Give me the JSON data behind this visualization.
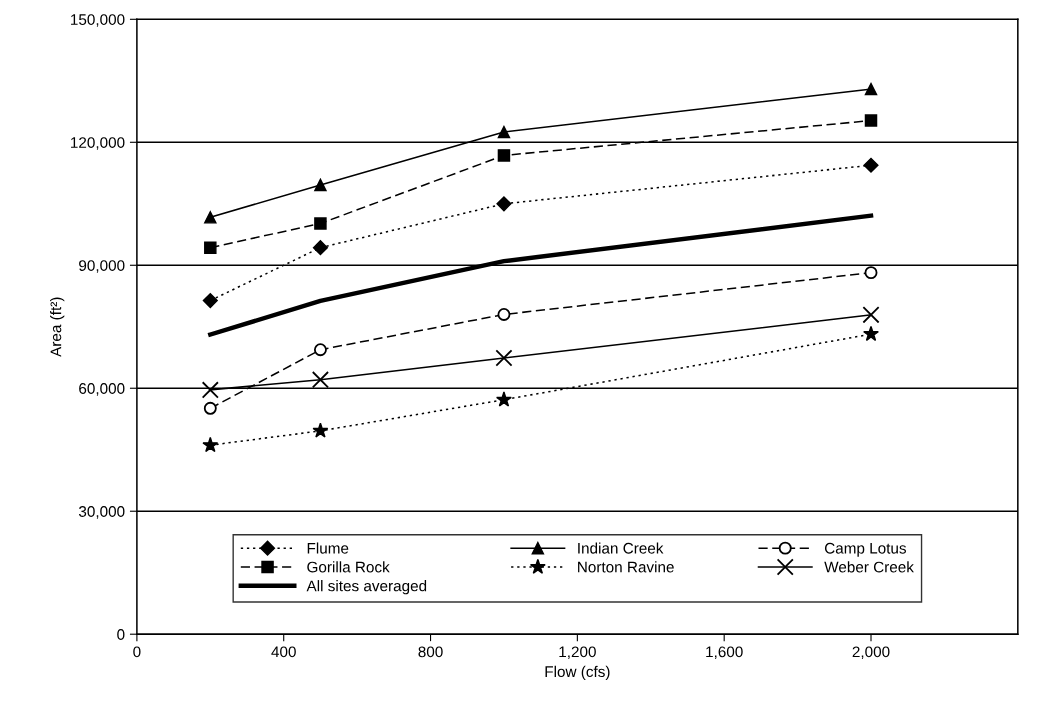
{
  "chart_data": {
    "type": "line",
    "xlabel": "Flow (cfs)",
    "ylabel": "Area (ft²)",
    "xlim": [
      0,
      2400
    ],
    "xticks": [
      0,
      400,
      800,
      {
        "value": 1200,
        "label": "1,200"
      },
      {
        "value": 1600,
        "label": "1,600"
      },
      {
        "value": 2000,
        "label": "2,000"
      }
    ],
    "ylim": [
      0,
      150000
    ],
    "yticks": [
      {
        "value": 0,
        "label": "0"
      },
      {
        "value": 30000,
        "label": "30,000"
      },
      {
        "value": 60000,
        "label": "60,000"
      },
      {
        "value": 90000,
        "label": "90,000"
      },
      {
        "value": 120000,
        "label": "120,000"
      },
      {
        "value": 150000,
        "label": "150,000"
      }
    ],
    "grid": "y",
    "legend": "bottom",
    "series": [
      {
        "name": "Flume",
        "color": "#000000",
        "marker": "diamond",
        "line_style": "dotted",
        "x": [
          200,
          500,
          1000,
          2000
        ],
        "values": [
          81400,
          94300,
          105000,
          114400
        ]
      },
      {
        "name": "Indian Creek",
        "color": "#000000",
        "marker": "triangle",
        "line_style": "solid",
        "x": [
          200,
          500,
          1000,
          2000
        ],
        "values": [
          101700,
          109600,
          122500,
          133000
        ]
      },
      {
        "name": "Camp Lotus",
        "color": "#000000",
        "marker": "circle",
        "line_style": "dashed",
        "x": [
          200,
          500,
          1000,
          2000
        ],
        "values": [
          55100,
          69400,
          78000,
          88200
        ]
      },
      {
        "name": "Gorilla Rock",
        "color": "#000000",
        "marker": "square",
        "line_style": "dashed",
        "x": [
          200,
          500,
          1000,
          2000
        ],
        "values": [
          94300,
          100200,
          116800,
          125300
        ]
      },
      {
        "name": "Norton Ravine",
        "color": "#000000",
        "marker": "star",
        "line_style": "dotted",
        "x": [
          200,
          500,
          1000,
          2000
        ],
        "values": [
          46100,
          49600,
          57200,
          73200
        ]
      },
      {
        "name": "Weber Creek",
        "color": "#000000",
        "marker": "cross",
        "line_style": "solid",
        "x": [
          200,
          500,
          1000,
          2000
        ],
        "values": [
          59600,
          62100,
          67400,
          77900
        ]
      },
      {
        "name": "All sites averaged",
        "color": "#000000",
        "marker": "none",
        "line_style": "solid",
        "x": [
          200,
          500,
          1000,
          2000
        ],
        "values": [
          73100,
          81300,
          91000,
          102100
        ]
      }
    ]
  }
}
